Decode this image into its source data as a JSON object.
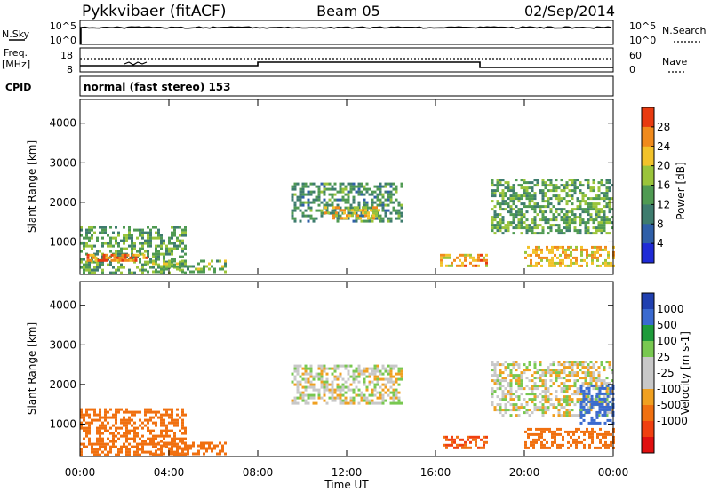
{
  "header": {
    "radar": "Pykkvibaer (fitACF)",
    "beam": "Beam 05",
    "date": "02/Sep/2014"
  },
  "top_panels": {
    "nsky_label": "N.Sky",
    "nsearch_label": "N.Search",
    "noise_ticks": [
      "10^5",
      "10^0"
    ],
    "noise_ticks_right": [
      "10^5",
      "10^0"
    ],
    "freq_label_1": "Freq.",
    "freq_label_2": "[MHz]",
    "freq_ticks": [
      "18",
      "8"
    ],
    "nave_label": "Nave",
    "nave_ticks": [
      "60",
      "0"
    ],
    "cpid_label": "CPID",
    "cpid_text": "normal (fast stereo) 153"
  },
  "colors": {
    "power": [
      "#1f2bd6",
      "#2f5fa8",
      "#3e7c6e",
      "#4f9a52",
      "#9ac43a",
      "#f2c22a",
      "#f08a1c",
      "#e83a10"
    ],
    "velocity": [
      "#2040b0",
      "#3a6ad0",
      "#1e9b3a",
      "#78c850",
      "#c8c8c8",
      "#c8c8c8",
      "#f0a020",
      "#f07010",
      "#f04010",
      "#e01010"
    ]
  },
  "chart_data": [
    {
      "type": "heatmap",
      "panel": "power",
      "xlabel": "",
      "ylabel": "Slant Range [km]",
      "xlim": [
        0,
        24
      ],
      "ylim": [
        180,
        4600
      ],
      "yticks": [
        "1000",
        "2000",
        "3000",
        "4000"
      ],
      "colorbar_label": "Power [dB]",
      "colorbar_ticks": [
        "4",
        "8",
        "12",
        "16",
        "20",
        "24",
        "28"
      ],
      "clim": [
        0,
        32
      ],
      "echo_regions": [
        {
          "t": [
            0.0,
            4.8
          ],
          "range": [
            250,
            1400
          ],
          "power": 14
        },
        {
          "t": [
            0.3,
            3.0
          ],
          "range": [
            500,
            700
          ],
          "power": 26
        },
        {
          "t": [
            3.0,
            6.5
          ],
          "range": [
            250,
            550
          ],
          "power": 16
        },
        {
          "t": [
            9.5,
            14.5
          ],
          "range": [
            1500,
            2500
          ],
          "power": 12
        },
        {
          "t": [
            11.0,
            13.5
          ],
          "range": [
            1600,
            1900
          ],
          "power": 22
        },
        {
          "t": [
            16.2,
            18.3
          ],
          "range": [
            400,
            700
          ],
          "power": 24
        },
        {
          "t": [
            18.5,
            24.0
          ],
          "range": [
            1200,
            2600
          ],
          "power": 14
        },
        {
          "t": [
            20.0,
            24.0
          ],
          "range": [
            400,
            900
          ],
          "power": 22
        }
      ]
    },
    {
      "type": "heatmap",
      "panel": "velocity",
      "xlabel": "Time UT",
      "ylabel": "Slant Range [km]",
      "xlim": [
        0,
        24
      ],
      "xticks": [
        "00:00",
        "04:00",
        "08:00",
        "12:00",
        "16:00",
        "20:00",
        "00:00"
      ],
      "ylim": [
        180,
        4600
      ],
      "yticks": [
        "1000",
        "2000",
        "3000",
        "4000"
      ],
      "colorbar_label": "Velocity [m s-1]",
      "colorbar_ticks": [
        "1000",
        "500",
        "100",
        "25",
        "-25",
        "-100",
        "-500",
        "-1000"
      ],
      "echo_regions": [
        {
          "t": [
            0.0,
            4.8
          ],
          "range": [
            250,
            1400
          ],
          "velocity": -150
        },
        {
          "t": [
            3.0,
            6.5
          ],
          "range": [
            250,
            550
          ],
          "velocity": -200
        },
        {
          "t": [
            9.5,
            14.5
          ],
          "range": [
            1500,
            2500
          ],
          "velocity": 0
        },
        {
          "t": [
            16.2,
            18.3
          ],
          "range": [
            400,
            700
          ],
          "velocity": -300
        },
        {
          "t": [
            18.5,
            24.0
          ],
          "range": [
            1200,
            2600
          ],
          "velocity": 0
        },
        {
          "t": [
            20.0,
            24.0
          ],
          "range": [
            400,
            900
          ],
          "velocity": -150
        },
        {
          "t": [
            22.5,
            24.0
          ],
          "range": [
            1000,
            2000
          ],
          "velocity": 400
        }
      ]
    }
  ]
}
